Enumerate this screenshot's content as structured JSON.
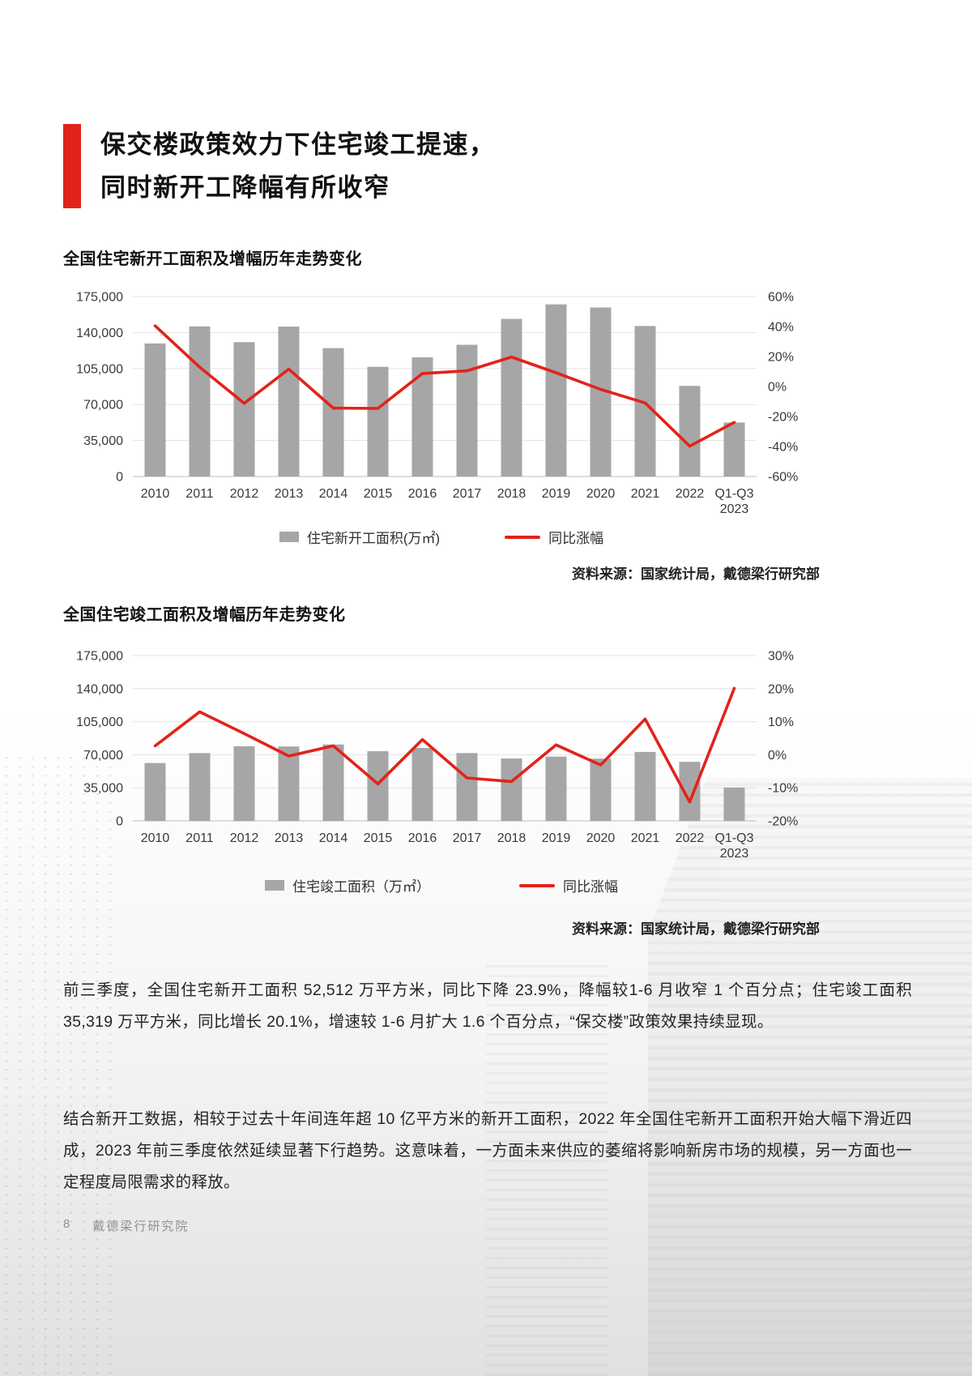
{
  "page": {
    "title_line1": "保交楼政策效力下住宅竣工提速，",
    "title_line2": "同时新开工降幅有所收窄",
    "footer_page_number": "8",
    "footer_text": "戴德梁行研究院"
  },
  "colors": {
    "accent_red": "#e2231a",
    "bar_gray": "#a6a6a6"
  },
  "paragraphs": [
    "前三季度，全国住宅新开工面积 52,512 万平方米，同比下降 23.9%，降幅较1-6 月收窄 1 个百分点；住宅竣工面积 35,319 万平方米，同比增长 20.1%，增速较 1-6 月扩大 1.6 个百分点，“保交楼”政策效果持续显现。",
    "结合新开工数据，相较于过去十年间连年超 10 亿平方米的新开工面积，2022 年全国住宅新开工面积开始大幅下滑近四成，2023 年前三季度依然延续显著下行趋势。这意味着，一方面未来供应的萎缩将影响新房市场的规模，另一方面也一定程度局限需求的释放。"
  ],
  "chart_data": [
    {
      "type": "bar",
      "title": "全国住宅新开工面积及增幅历年走势变化",
      "categories": [
        "2010",
        "2011",
        "2012",
        "2013",
        "2014",
        "2015",
        "2016",
        "2017",
        "2018",
        "2019",
        "2020",
        "2021",
        "2022",
        "Q1-Q3 2023"
      ],
      "series": [
        {
          "name": "住宅新开工面积(万㎡)",
          "type": "bar",
          "axis": "left",
          "color": "#a6a6a6",
          "values": [
            129468,
            146000,
            130695,
            145845,
            124877,
            106651,
            115911,
            128098,
            153353,
            167463,
            164329,
            146379,
            88135,
            52512
          ]
        },
        {
          "name": "同比涨幅",
          "type": "line",
          "axis": "right",
          "color": "#e2231a",
          "values": [
            40.5,
            12.9,
            -11.2,
            11.6,
            -14.4,
            -14.6,
            8.7,
            10.5,
            19.7,
            9.2,
            -1.9,
            -10.9,
            -39.8,
            -23.9
          ]
        }
      ],
      "left_axis": {
        "min": 0,
        "max": 175000,
        "step": 35000,
        "labels": [
          "0",
          "35,000",
          "70,000",
          "105,000",
          "140,000",
          "175,000"
        ]
      },
      "right_axis": {
        "min": -60,
        "max": 60,
        "step": 20,
        "labels": [
          "-60%",
          "-40%",
          "-20%",
          "0%",
          "20%",
          "40%",
          "60%"
        ]
      },
      "grid": true,
      "legend_position": "bottom",
      "source": "资料来源：国家统计局，戴德梁行研究部"
    },
    {
      "type": "bar",
      "title": "全国住宅竣工面积及增幅历年走势变化",
      "categories": [
        "2010",
        "2011",
        "2012",
        "2013",
        "2014",
        "2015",
        "2016",
        "2017",
        "2018",
        "2019",
        "2020",
        "2021",
        "2022",
        "Q1-Q3 2023"
      ],
      "series": [
        {
          "name": "住宅竣工面积（万㎡）",
          "type": "bar",
          "axis": "left",
          "color": "#a6a6a6",
          "values": [
            61216,
            71692,
            79043,
            78741,
            80868,
            73777,
            77185,
            71815,
            66016,
            68011,
            65910,
            73016,
            62539,
            35319
          ]
        },
        {
          "name": "同比涨幅",
          "type": "line",
          "axis": "right",
          "color": "#e2231a",
          "values": [
            2.7,
            13.0,
            6.4,
            -0.4,
            2.7,
            -8.8,
            4.6,
            -7.0,
            -8.1,
            3.0,
            -3.1,
            10.8,
            -14.3,
            20.1
          ]
        }
      ],
      "left_axis": {
        "min": 0,
        "max": 175000,
        "step": 35000,
        "labels": [
          "0",
          "35,000",
          "70,000",
          "105,000",
          "140,000",
          "175,000"
        ]
      },
      "right_axis": {
        "min": -20,
        "max": 30,
        "step": 10,
        "labels": [
          "-20%",
          "-10%",
          "0%",
          "10%",
          "20%",
          "30%"
        ]
      },
      "grid": true,
      "legend_position": "bottom",
      "source": "资料来源：国家统计局，戴德梁行研究部"
    }
  ]
}
